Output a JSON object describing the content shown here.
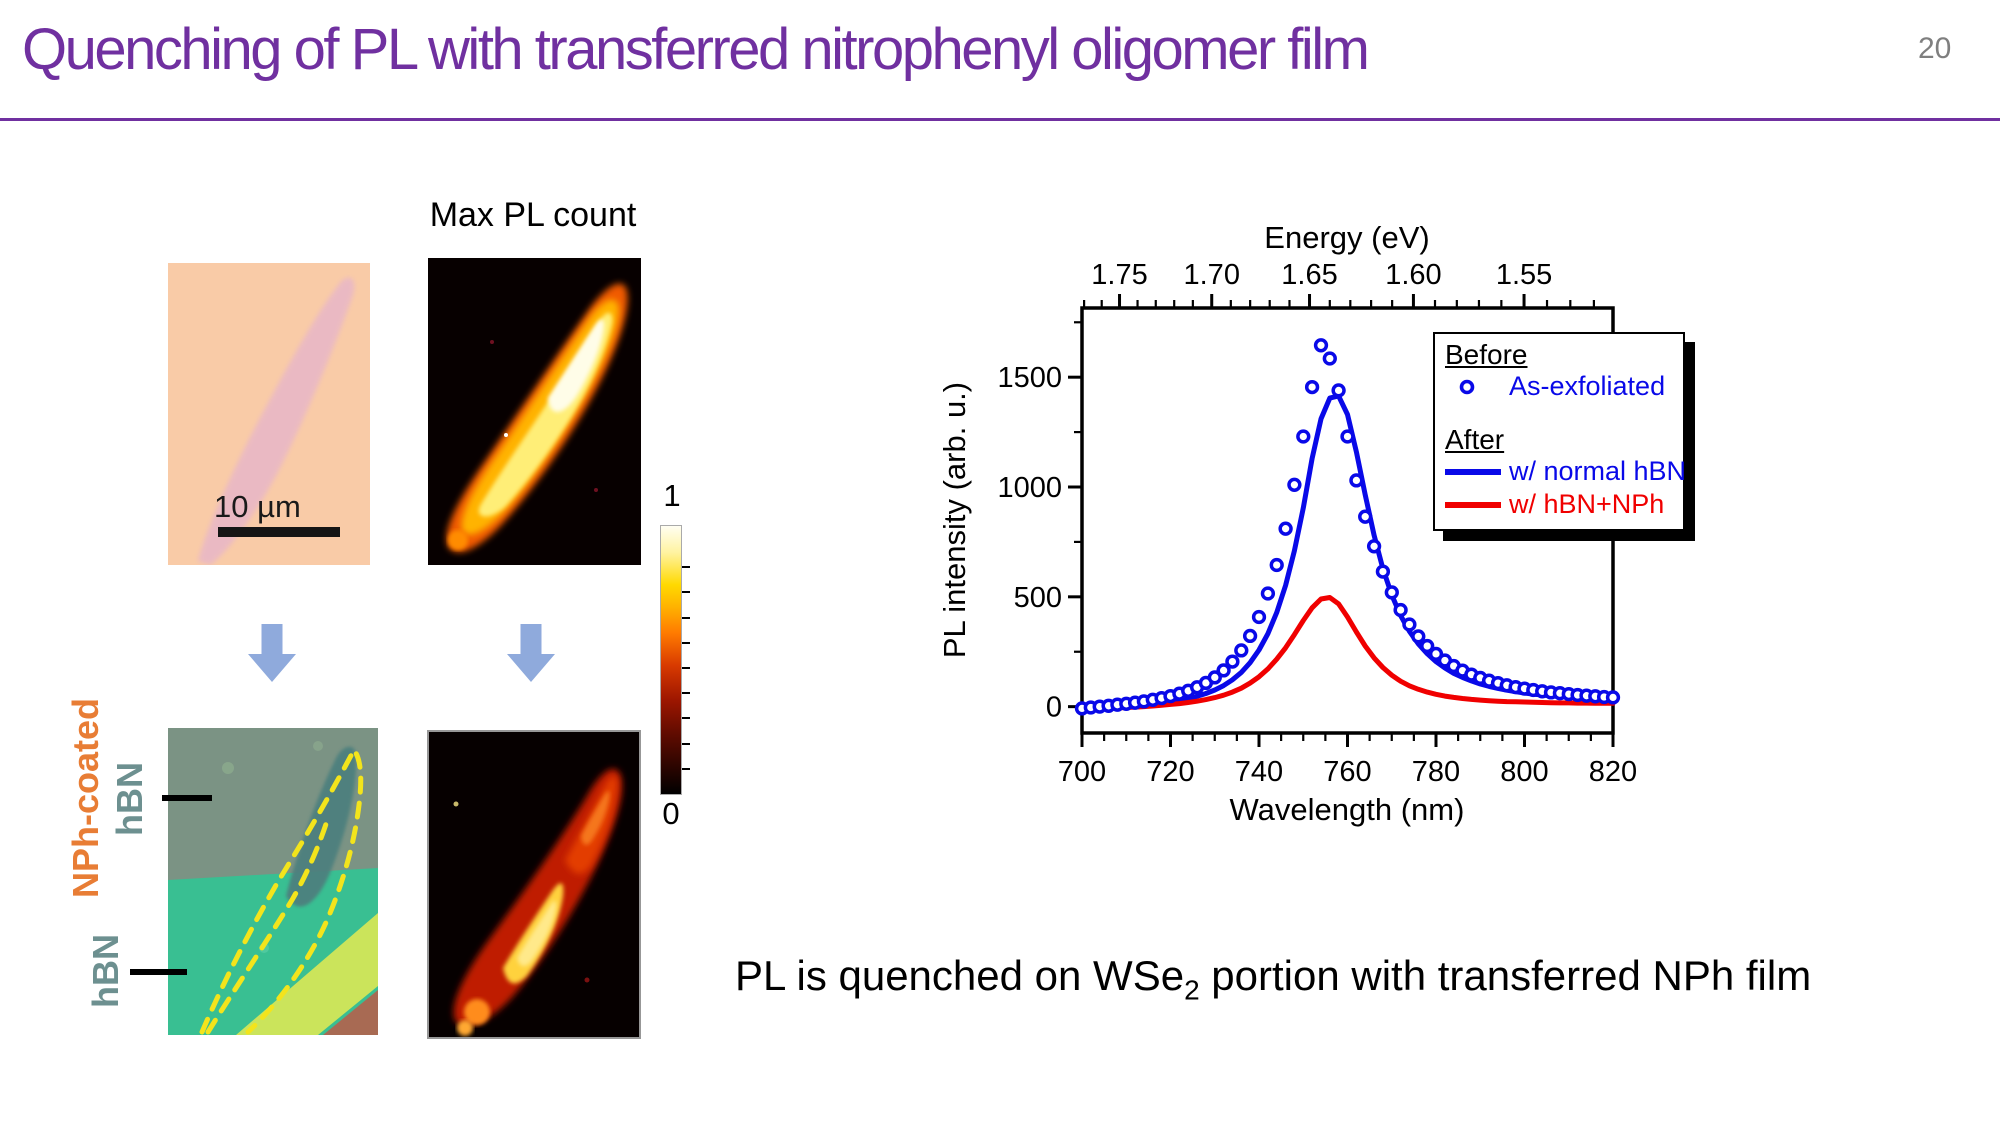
{
  "slide": {
    "title": "Quenching of PL with transferred nitrophenyl oligomer film",
    "page_number": "20",
    "accent_color": "#7030A0",
    "page_number_color": "#7f7f7f",
    "conclusion_pre": "PL is quenched on WSe",
    "conclusion_sub": "2",
    "conclusion_post": " portion with transferred NPh film"
  },
  "panels": {
    "max_pl_label": "Max PL count",
    "scale_bar_label": "10 µm",
    "colorbar_top": "1",
    "colorbar_bottom": "0",
    "nph_coated_label": "NPh-coated",
    "hbn_top_label": "hBN",
    "hbn_bottom_label": "hBN",
    "nph_label_color": "#E87D35",
    "hbn_label_color": "#6D9090",
    "arrow_color": "#8FAADC"
  },
  "chart_data": {
    "type": "line+scatter",
    "xlabel": "Wavelength (nm)",
    "top_xlabel": "Energy (eV)",
    "ylabel": "PL intensity (arb. u.)",
    "xlim": [
      700,
      820
    ],
    "ylim": [
      -120,
      1815
    ],
    "x_ticks": [
      700,
      720,
      740,
      760,
      780,
      800,
      820
    ],
    "x_minor_step": 5,
    "y_ticks": [
      0,
      500,
      1000,
      1500
    ],
    "y_minor_ticks": [
      250,
      750,
      1250,
      1750
    ],
    "top_ticks_ev": [
      1.75,
      1.7,
      1.65,
      1.6,
      1.55
    ],
    "top_minor_step_ev": 0.01,
    "ev_nm_constant": 1239.84,
    "grid": false,
    "legend_position": "top-right",
    "series": [
      {
        "name": "As-exfoliated",
        "style": "scatter",
        "marker": "open-circle",
        "color": "#0909E8",
        "points": [
          [
            700,
            -8
          ],
          [
            702,
            -4
          ],
          [
            704,
            0
          ],
          [
            706,
            4
          ],
          [
            708,
            9
          ],
          [
            710,
            13
          ],
          [
            712,
            18
          ],
          [
            714,
            24
          ],
          [
            716,
            31
          ],
          [
            718,
            39
          ],
          [
            720,
            48
          ],
          [
            722,
            59
          ],
          [
            724,
            72
          ],
          [
            726,
            88
          ],
          [
            728,
            108
          ],
          [
            730,
            133
          ],
          [
            732,
            165
          ],
          [
            734,
            205
          ],
          [
            736,
            256
          ],
          [
            738,
            322
          ],
          [
            740,
            408
          ],
          [
            742,
            515
          ],
          [
            744,
            645
          ],
          [
            746,
            810
          ],
          [
            748,
            1010
          ],
          [
            750,
            1230
          ],
          [
            752,
            1455
          ],
          [
            754,
            1645
          ],
          [
            756,
            1585
          ],
          [
            758,
            1440
          ],
          [
            760,
            1230
          ],
          [
            762,
            1030
          ],
          [
            764,
            865
          ],
          [
            766,
            730
          ],
          [
            768,
            615
          ],
          [
            770,
            520
          ],
          [
            772,
            440
          ],
          [
            774,
            374
          ],
          [
            776,
            320
          ],
          [
            778,
            276
          ],
          [
            780,
            240
          ],
          [
            782,
            210
          ],
          [
            784,
            185
          ],
          [
            786,
            164
          ],
          [
            788,
            146
          ],
          [
            790,
            131
          ],
          [
            792,
            118
          ],
          [
            794,
            107
          ],
          [
            796,
            97
          ],
          [
            798,
            89
          ],
          [
            800,
            82
          ],
          [
            802,
            76
          ],
          [
            804,
            70
          ],
          [
            806,
            65
          ],
          [
            808,
            61
          ],
          [
            810,
            57
          ],
          [
            812,
            53
          ],
          [
            814,
            50
          ],
          [
            816,
            47
          ],
          [
            818,
            44
          ],
          [
            820,
            42
          ]
        ]
      },
      {
        "name": "w/ normal hBN",
        "style": "line",
        "color": "#0909E8",
        "points": [
          [
            700,
            -10
          ],
          [
            702,
            -8
          ],
          [
            704,
            -6
          ],
          [
            706,
            -4
          ],
          [
            708,
            -2
          ],
          [
            710,
            0
          ],
          [
            712,
            3
          ],
          [
            714,
            7
          ],
          [
            716,
            11
          ],
          [
            718,
            16
          ],
          [
            720,
            22
          ],
          [
            722,
            29
          ],
          [
            724,
            37
          ],
          [
            726,
            47
          ],
          [
            728,
            60
          ],
          [
            730,
            76
          ],
          [
            732,
            96
          ],
          [
            734,
            122
          ],
          [
            736,
            156
          ],
          [
            738,
            200
          ],
          [
            740,
            258
          ],
          [
            742,
            332
          ],
          [
            744,
            428
          ],
          [
            746,
            552
          ],
          [
            748,
            710
          ],
          [
            750,
            905
          ],
          [
            752,
            1130
          ],
          [
            754,
            1310
          ],
          [
            756,
            1405
          ],
          [
            758,
            1415
          ],
          [
            760,
            1330
          ],
          [
            762,
            1160
          ],
          [
            764,
            965
          ],
          [
            766,
            780
          ],
          [
            768,
            628
          ],
          [
            770,
            508
          ],
          [
            772,
            415
          ],
          [
            774,
            343
          ],
          [
            776,
            286
          ],
          [
            778,
            241
          ],
          [
            780,
            205
          ],
          [
            782,
            176
          ],
          [
            784,
            152
          ],
          [
            786,
            133
          ],
          [
            788,
            117
          ],
          [
            790,
            103
          ],
          [
            792,
            92
          ],
          [
            794,
            83
          ],
          [
            796,
            75
          ],
          [
            798,
            68
          ],
          [
            800,
            62
          ],
          [
            802,
            57
          ],
          [
            804,
            53
          ],
          [
            806,
            49
          ],
          [
            808,
            46
          ],
          [
            810,
            43
          ],
          [
            812,
            41
          ],
          [
            814,
            39
          ],
          [
            816,
            37
          ],
          [
            818,
            35
          ],
          [
            820,
            34
          ]
        ]
      },
      {
        "name": "w/ hBN+NPh",
        "style": "line",
        "color": "#F00000",
        "points": [
          [
            700,
            -14
          ],
          [
            702,
            -12
          ],
          [
            704,
            -10
          ],
          [
            706,
            -8
          ],
          [
            708,
            -6
          ],
          [
            710,
            -4
          ],
          [
            712,
            -2
          ],
          [
            714,
            0
          ],
          [
            716,
            3
          ],
          [
            718,
            6
          ],
          [
            720,
            10
          ],
          [
            722,
            14
          ],
          [
            724,
            19
          ],
          [
            726,
            25
          ],
          [
            728,
            32
          ],
          [
            730,
            41
          ],
          [
            732,
            52
          ],
          [
            734,
            66
          ],
          [
            736,
            84
          ],
          [
            738,
            107
          ],
          [
            740,
            136
          ],
          [
            742,
            172
          ],
          [
            744,
            216
          ],
          [
            746,
            268
          ],
          [
            748,
            328
          ],
          [
            750,
            392
          ],
          [
            752,
            450
          ],
          [
            754,
            490
          ],
          [
            756,
            497
          ],
          [
            758,
            468
          ],
          [
            760,
            408
          ],
          [
            762,
            340
          ],
          [
            764,
            276
          ],
          [
            766,
            222
          ],
          [
            768,
            178
          ],
          [
            770,
            143
          ],
          [
            772,
            116
          ],
          [
            774,
            95
          ],
          [
            776,
            79
          ],
          [
            778,
            66
          ],
          [
            780,
            56
          ],
          [
            782,
            48
          ],
          [
            784,
            42
          ],
          [
            786,
            37
          ],
          [
            788,
            33
          ],
          [
            790,
            30
          ],
          [
            792,
            27
          ],
          [
            794,
            25
          ],
          [
            796,
            23
          ],
          [
            798,
            22
          ],
          [
            800,
            21
          ],
          [
            802,
            20
          ],
          [
            804,
            19
          ],
          [
            806,
            18
          ],
          [
            808,
            17
          ],
          [
            810,
            17
          ],
          [
            812,
            16
          ],
          [
            814,
            16
          ],
          [
            816,
            15
          ],
          [
            818,
            15
          ],
          [
            820,
            15
          ]
        ]
      }
    ],
    "legend": {
      "before_heading": "Before",
      "after_heading": "After",
      "entries": [
        {
          "label": "As-exfoliated",
          "color": "#0909E8",
          "marker": "open-circle"
        },
        {
          "label": "w/ normal hBN",
          "color": "#0909E8",
          "marker": "line"
        },
        {
          "label": "w/ hBN+NPh",
          "color": "#F00000",
          "marker": "line"
        }
      ]
    }
  }
}
